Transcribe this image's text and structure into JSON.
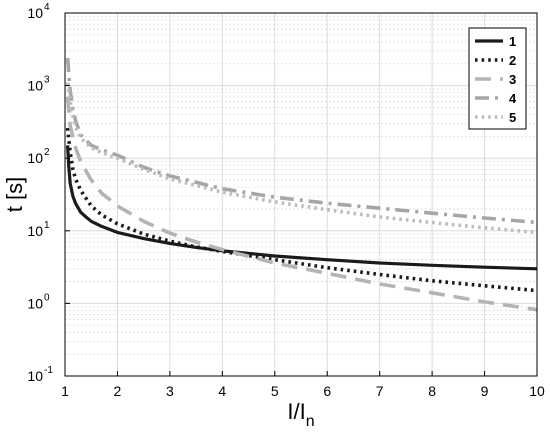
{
  "chart_data": {
    "type": "line",
    "xlabel": "I/I",
    "xlabel_sub": "n",
    "ylabel": "t [s]",
    "xlim": [
      1,
      10
    ],
    "ylim": [
      0.1,
      10000
    ],
    "y_scale": "log",
    "grid": true,
    "x_ticks": [
      "1",
      "2",
      "3",
      "4",
      "5",
      "6",
      "7",
      "8",
      "9",
      "10"
    ],
    "y_ticks": [
      {
        "base": "10",
        "exp": "-1",
        "value": 0.1
      },
      {
        "base": "10",
        "exp": "0",
        "value": 1
      },
      {
        "base": "10",
        "exp": "1",
        "value": 10
      },
      {
        "base": "10",
        "exp": "2",
        "value": 100
      },
      {
        "base": "10",
        "exp": "3",
        "value": 1000
      },
      {
        "base": "10",
        "exp": "4",
        "value": 10000
      }
    ],
    "legend_position": "top-right",
    "series": [
      {
        "name": "1",
        "color": "#1a1a1a",
        "dash": "solid",
        "x": [
          1.05,
          1.07,
          1.1,
          1.15,
          1.2,
          1.3,
          1.4,
          1.5,
          1.7,
          2.0,
          2.5,
          3.0,
          3.5,
          4.0,
          5.0,
          6.0,
          7.0,
          8.0,
          9.0,
          10.0
        ],
        "y": [
          150,
          80,
          45,
          30,
          24,
          18,
          15.5,
          13.5,
          11.5,
          9.5,
          7.8,
          6.7,
          5.9,
          5.3,
          4.5,
          4.0,
          3.6,
          3.35,
          3.15,
          3.0
        ]
      },
      {
        "name": "2",
        "color": "#1a1a1a",
        "dash": "dotted",
        "x": [
          1.05,
          1.1,
          1.15,
          1.2,
          1.3,
          1.5,
          1.7,
          2.0,
          2.5,
          3.0,
          3.5,
          4.0,
          5.0,
          6.0,
          7.0,
          8.0,
          9.0,
          10.0
        ],
        "y": [
          260,
          120,
          70,
          52,
          36,
          22,
          16.5,
          12.5,
          9.0,
          7.2,
          6.0,
          5.2,
          4.0,
          3.1,
          2.5,
          2.05,
          1.75,
          1.5
        ]
      },
      {
        "name": "3",
        "color": "#b4b4b4",
        "dash": "dashed",
        "x": [
          1.05,
          1.1,
          1.2,
          1.3,
          1.5,
          1.7,
          2.0,
          2.5,
          3.0,
          3.5,
          4.0,
          5.0,
          6.0,
          7.0,
          8.0,
          9.0,
          10.0
        ],
        "y": [
          700,
          280,
          140,
          90,
          50,
          33,
          22,
          13.5,
          9.3,
          7.0,
          5.5,
          3.6,
          2.6,
          1.85,
          1.4,
          1.05,
          0.82
        ]
      },
      {
        "name": "4",
        "color": "#a6a6a6",
        "dash": "dashdot",
        "x": [
          1.05,
          1.1,
          1.15,
          1.2,
          1.3,
          1.5,
          1.7,
          2.0,
          2.5,
          3.0,
          4.0,
          5.0,
          6.0,
          7.0,
          8.0,
          9.0,
          10.0
        ],
        "y": [
          2400,
          850,
          480,
          330,
          210,
          150,
          130,
          110,
          75,
          57,
          38,
          29,
          24,
          20.5,
          17.5,
          15,
          13
        ]
      },
      {
        "name": "5",
        "color": "#bcbcbc",
        "dash": "dotted",
        "x": [
          1.05,
          1.1,
          1.15,
          1.2,
          1.3,
          1.5,
          1.7,
          2.0,
          2.5,
          3.0,
          4.0,
          5.0,
          6.0,
          7.0,
          8.0,
          9.0,
          10.0
        ],
        "y": [
          1100,
          600,
          380,
          270,
          190,
          140,
          120,
          100,
          70,
          52,
          34,
          25,
          19.5,
          15.5,
          13,
          11,
          9.5
        ]
      }
    ]
  }
}
